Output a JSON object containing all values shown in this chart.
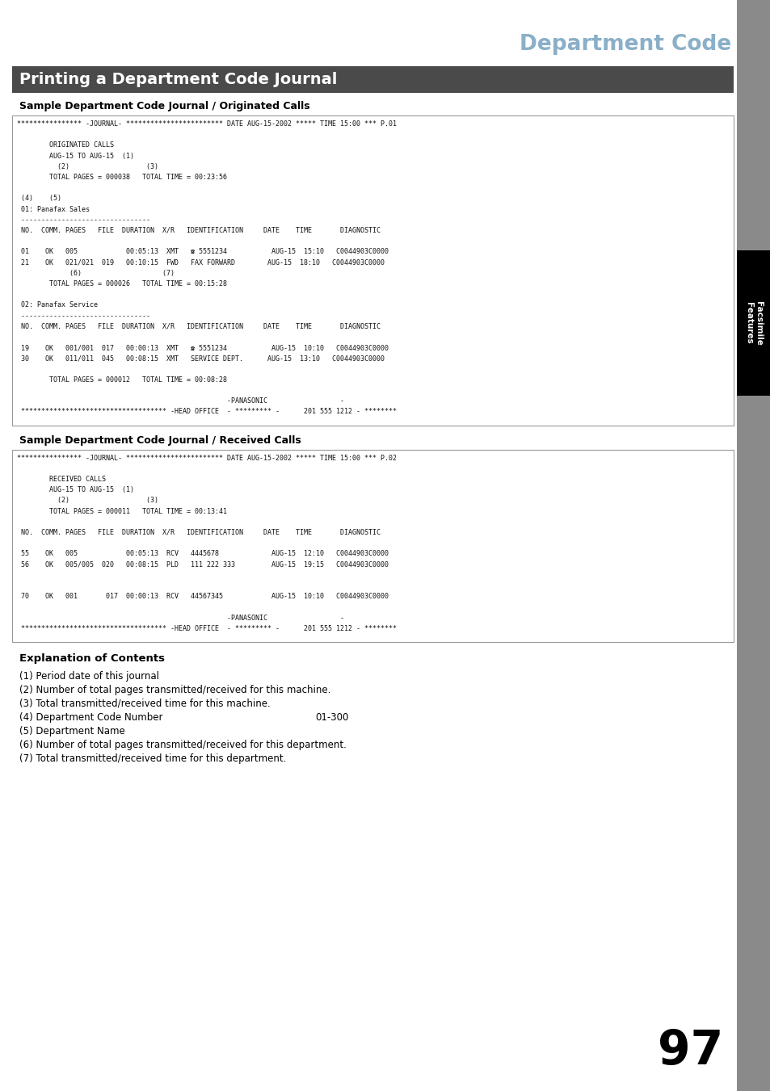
{
  "page_title": "Department Code",
  "section_title": "Printing a Department Code Journal",
  "subsection1": "Sample Department Code Journal / Originated Calls",
  "subsection2": "Sample Department Code Journal / Received Calls",
  "subsection3": "Explanation of Contents",
  "journal1_lines": [
    "**************** -JOURNAL- ************************ DATE AUG-15-2002 ***** TIME 15:00 *** P.01",
    "",
    "        ORIGINATED CALLS",
    "        AUG-15 TO AUG-15  (1)",
    "          (2)                   (3)",
    "        TOTAL PAGES = 000038   TOTAL TIME = 00:23:56",
    "",
    " (4)    (5)",
    " 01: Panafax Sales",
    " --------------------------------",
    " NO.  COMM. PAGES   FILE  DURATION  X/R   IDENTIFICATION     DATE    TIME       DIAGNOSTIC",
    "",
    " 01    OK   005            00:05:13  XMT   ☎ 5551234           AUG-15  15:10   C0044903C0000",
    " 21    OK   021/021  019   00:10:15  FWD   FAX FORWARD        AUG-15  18:10   C0044903C0000",
    "             (6)                    (7)",
    "        TOTAL PAGES = 000026   TOTAL TIME = 00:15:28",
    "",
    " 02: Panafax Service",
    " --------------------------------",
    " NO.  COMM. PAGES   FILE  DURATION  X/R   IDENTIFICATION     DATE    TIME       DIAGNOSTIC",
    "",
    " 19    OK   001/001  017   00:00:13  XMT   ☎ 5551234           AUG-15  10:10   C0044903C0000",
    " 30    OK   011/011  045   00:08:15  XMT   SERVICE DEPT.      AUG-15  13:10   C0044903C0000",
    "",
    "        TOTAL PAGES = 000012   TOTAL TIME = 00:08:28",
    "",
    "                                                    -PANASONIC                  -",
    " ************************************ -HEAD OFFICE  - ********* -      201 555 1212 - ********"
  ],
  "journal2_lines": [
    "**************** -JOURNAL- ************************ DATE AUG-15-2002 ***** TIME 15:00 *** P.02",
    "",
    "        RECEIVED CALLS",
    "        AUG-15 TO AUG-15  (1)",
    "          (2)                   (3)",
    "        TOTAL PAGES = 000011   TOTAL TIME = 00:13:41",
    "",
    " NO.  COMM. PAGES   FILE  DURATION  X/R   IDENTIFICATION     DATE    TIME       DIAGNOSTIC",
    "",
    " 55    OK   005            00:05:13  RCV   4445678             AUG-15  12:10   C0044903C0000",
    " 56    OK   005/005  020   00:08:15  PLD   111 222 333         AUG-15  19:15   C0044903C0000",
    "",
    "",
    " 70    OK   001       017  00:00:13  RCV   44567345            AUG-15  10:10   C0044903C0000",
    "",
    "                                                    -PANASONIC                  -",
    " ************************************ -HEAD OFFICE  - ********* -      201 555 1212 - ********"
  ],
  "explanation_items": [
    "(1) Period date of this journal",
    "(2) Number of total pages transmitted/received for this machine.",
    "(3) Total transmitted/received time for this machine.",
    "(4) Department Code Number",
    "(5) Department Name",
    "(6) Number of total pages transmitted/received for this department.",
    "(7) Total transmitted/received time for this department."
  ],
  "explanation_item4_extra": "01-300",
  "page_number": "97",
  "title_color": "#8aafc8",
  "section_bg_color": "#4a4a4a",
  "section_text_color": "#ffffff",
  "sidebar_bg_color": "#8a8a8a",
  "sidebar_tab_color": "#000000",
  "sidebar_text_color": "#ffffff",
  "box_border_color": "#999999",
  "box_bg_color": "#ffffff",
  "background_color": "#ffffff"
}
